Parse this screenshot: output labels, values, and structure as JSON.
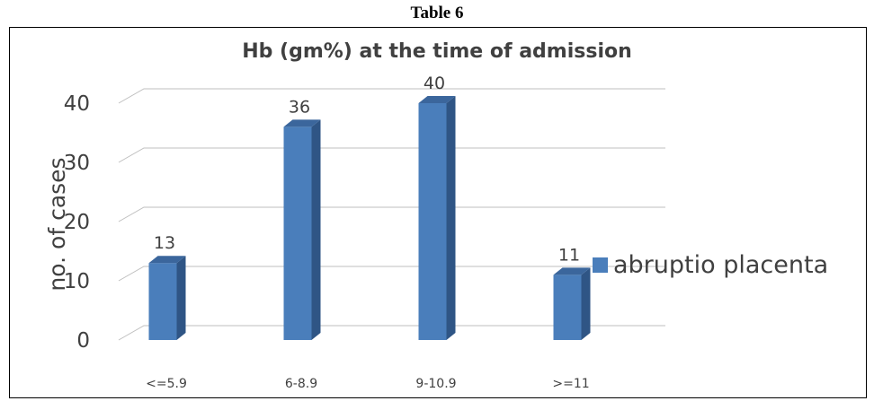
{
  "caption": "Table 6",
  "chart_data": {
    "type": "bar",
    "title": "Hb (gm%) at the time of admission",
    "xlabel": "",
    "ylabel": "no. of cases",
    "categories": [
      "<=5.9",
      "6-8.9",
      "9-10.9",
      ">=11"
    ],
    "series": [
      {
        "name": "abruptio placenta",
        "values": [
          13,
          36,
          40,
          11
        ]
      }
    ],
    "y_ticks": [
      "0",
      "10",
      "20",
      "30",
      "40"
    ],
    "ylim": [
      0,
      40
    ],
    "grid": true,
    "legend": "right",
    "bar_color": "#4a7ebb"
  }
}
